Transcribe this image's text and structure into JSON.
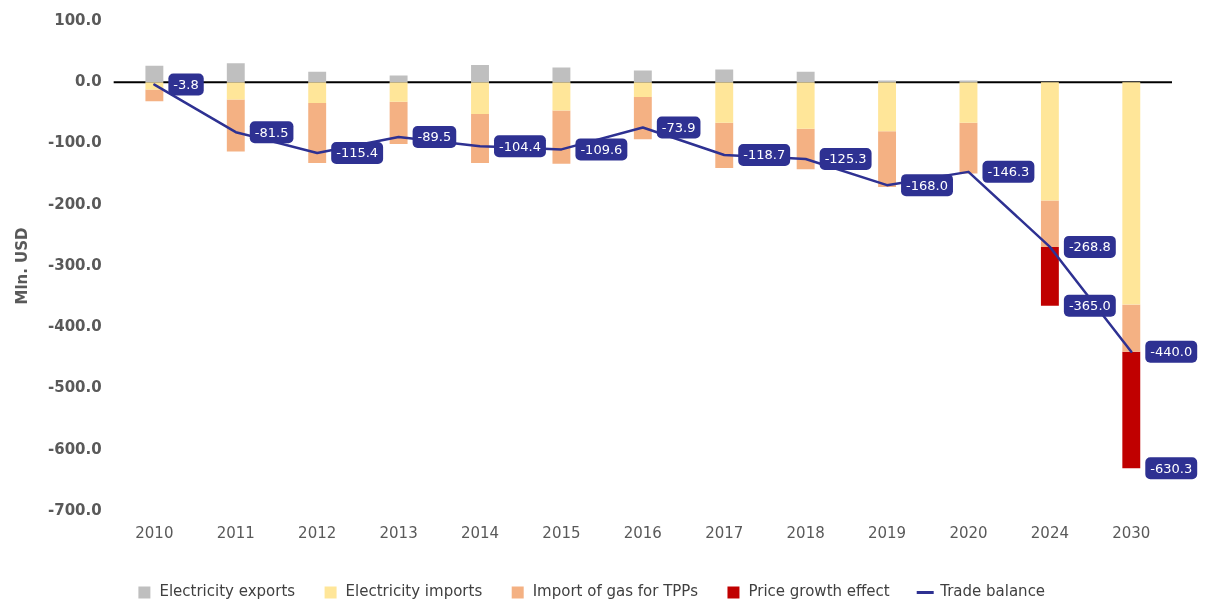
{
  "chart_data": {
    "type": "bar",
    "stacked": true,
    "ylabel": "Mln. USD",
    "categories": [
      "2010",
      "2011",
      "2012",
      "2013",
      "2014",
      "2015",
      "2016",
      "2017",
      "2018",
      "2019",
      "2020",
      "2024",
      "2030"
    ],
    "series": [
      {
        "name": "Electricity exports",
        "color": "#bfbfbf",
        "values": [
          27,
          31,
          17,
          11,
          28,
          24,
          19,
          21,
          17,
          3,
          3,
          0,
          0
        ]
      },
      {
        "name": "Electricity imports",
        "color": "#ffe699",
        "values": [
          -12,
          -28,
          -34,
          -32,
          -52,
          -46,
          -24,
          -66,
          -76,
          -80,
          -66,
          -193,
          -363
        ]
      },
      {
        "name": "Import of gas for TPPs",
        "color": "#f4b183",
        "values": [
          -19,
          -85,
          -98,
          -69,
          -80,
          -87,
          -69,
          -74,
          -66,
          -91,
          -83,
          -76,
          -77
        ]
      },
      {
        "name": "Price growth effect",
        "color": "#c00000",
        "values": [
          null,
          null,
          null,
          null,
          null,
          null,
          null,
          null,
          null,
          null,
          null,
          -96,
          -190
        ]
      },
      {
        "name": "Trade balance",
        "type": "line",
        "color": "#2e3192",
        "marker": "none",
        "line_style": "solid",
        "values": [
          -3.8,
          -81.5,
          -115.4,
          -89.5,
          -104.4,
          -109.6,
          -73.9,
          -118.7,
          -125.3,
          -168.0,
          -146.3,
          -268.8,
          -440.0
        ],
        "value_labels": [
          "-3.8",
          "-81.5",
          "-115.4",
          "-89.5",
          "-104.4",
          "-109.6",
          "-73.9",
          "-118.7",
          "-125.3",
          "-168.0",
          "-146.3",
          "-268.8",
          "-440.0"
        ]
      }
    ],
    "annotations": [
      {
        "text": "-365.0",
        "x": "2024",
        "y": -365.0
      },
      {
        "text": "-630.3",
        "x": "2030",
        "y": -630.3
      }
    ],
    "ylim": [
      -700,
      100
    ],
    "yticks": [
      {
        "value": 100,
        "label": "100.0"
      },
      {
        "value": 0,
        "label": "0.0"
      },
      {
        "value": -100,
        "label": "-100.0"
      },
      {
        "value": -200,
        "label": "-200.0"
      },
      {
        "value": -300,
        "label": "-300.0"
      },
      {
        "value": -400,
        "label": "-400.0"
      },
      {
        "value": -500,
        "label": "-500.0"
      },
      {
        "value": -600,
        "label": "-600.0"
      },
      {
        "value": -700,
        "label": "-700.0"
      }
    ],
    "ref_lines": [
      {
        "axis": "y",
        "value": 0,
        "color": "#000000"
      }
    ],
    "grid": false,
    "legend": "bottom"
  }
}
